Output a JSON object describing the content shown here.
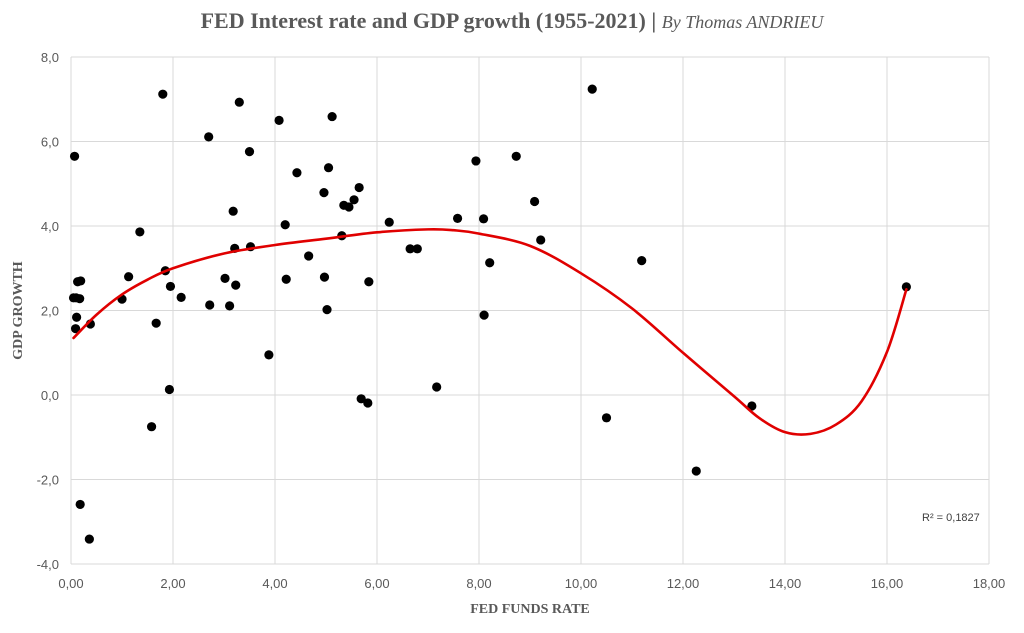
{
  "chart_data": {
    "type": "scatter",
    "title": "FED Interest rate and GDP growth (1955-2021)",
    "title_separator": "|",
    "subtitle": "By Thomas ANDRIEU",
    "xlabel": "FED FUNDS RATE",
    "ylabel": "GDP GROWTH",
    "xlim": [
      0,
      18
    ],
    "ylim": [
      -4,
      8
    ],
    "x_ticks": [
      "0,00",
      "2,00",
      "4,00",
      "6,00",
      "8,00",
      "10,00",
      "12,00",
      "14,00",
      "16,00",
      "18,00"
    ],
    "y_ticks": [
      "-4,0",
      "-2,0",
      "0,0",
      "2,0",
      "4,0",
      "6,0",
      "8,0"
    ],
    "grid": true,
    "r_squared_label": "R² = 0,1827",
    "colors": {
      "points": "#000000",
      "trendline": "#e00000",
      "grid": "#d9d9d9",
      "text": "#595959"
    },
    "series": [
      {
        "points": [
          [
            0.07,
            5.65
          ],
          [
            0.05,
            2.3
          ],
          [
            0.1,
            2.3
          ],
          [
            0.17,
            2.28
          ],
          [
            0.13,
            2.68
          ],
          [
            0.19,
            2.7
          ],
          [
            0.11,
            1.84
          ],
          [
            0.09,
            1.57
          ],
          [
            0.38,
            1.68
          ],
          [
            0.18,
            -2.59
          ],
          [
            0.36,
            -3.41
          ],
          [
            1.0,
            2.27
          ],
          [
            1.13,
            2.8
          ],
          [
            1.35,
            3.86
          ],
          [
            1.58,
            -0.75
          ],
          [
            1.67,
            1.7
          ],
          [
            1.8,
            7.12
          ],
          [
            1.85,
            2.94
          ],
          [
            1.95,
            2.57
          ],
          [
            1.93,
            0.13
          ],
          [
            2.16,
            2.31
          ],
          [
            2.7,
            6.11
          ],
          [
            2.72,
            2.13
          ],
          [
            3.02,
            2.76
          ],
          [
            3.11,
            2.11
          ],
          [
            3.18,
            4.35
          ],
          [
            3.21,
            3.47
          ],
          [
            3.23,
            2.6
          ],
          [
            3.3,
            6.93
          ],
          [
            3.5,
            5.76
          ],
          [
            3.52,
            3.51
          ],
          [
            3.88,
            0.95
          ],
          [
            4.08,
            6.5
          ],
          [
            4.2,
            4.03
          ],
          [
            4.22,
            2.74
          ],
          [
            4.43,
            5.26
          ],
          [
            4.66,
            3.29
          ],
          [
            4.96,
            4.79
          ],
          [
            4.97,
            2.79
          ],
          [
            5.02,
            2.02
          ],
          [
            5.05,
            5.38
          ],
          [
            5.12,
            6.59
          ],
          [
            5.31,
            3.77
          ],
          [
            5.35,
            4.49
          ],
          [
            5.45,
            4.45
          ],
          [
            5.55,
            4.62
          ],
          [
            5.65,
            4.91
          ],
          [
            5.69,
            -0.09
          ],
          [
            5.82,
            -0.19
          ],
          [
            5.84,
            2.68
          ],
          [
            6.24,
            4.09
          ],
          [
            6.65,
            3.46
          ],
          [
            6.79,
            3.46
          ],
          [
            7.17,
            0.19
          ],
          [
            7.58,
            4.18
          ],
          [
            7.94,
            5.54
          ],
          [
            8.09,
            4.17
          ],
          [
            8.1,
            1.89
          ],
          [
            8.21,
            3.13
          ],
          [
            8.73,
            5.65
          ],
          [
            9.09,
            4.58
          ],
          [
            9.21,
            3.67
          ],
          [
            10.22,
            7.24
          ],
          [
            10.5,
            -0.54
          ],
          [
            11.19,
            3.18
          ],
          [
            12.26,
            -1.8
          ],
          [
            13.35,
            -0.26
          ],
          [
            16.38,
            2.56
          ]
        ]
      }
    ],
    "trendline": {
      "type": "polynomial",
      "points": [
        [
          0.05,
          1.35
        ],
        [
          0.5,
          1.9
        ],
        [
          1.0,
          2.38
        ],
        [
          1.5,
          2.73
        ],
        [
          2.0,
          3.0
        ],
        [
          3.0,
          3.35
        ],
        [
          4.0,
          3.55
        ],
        [
          5.0,
          3.7
        ],
        [
          6.0,
          3.85
        ],
        [
          7.0,
          3.92
        ],
        [
          7.5,
          3.9
        ],
        [
          8.0,
          3.82
        ],
        [
          9.0,
          3.53
        ],
        [
          10.0,
          2.88
        ],
        [
          11.0,
          2.05
        ],
        [
          12.0,
          1.0
        ],
        [
          13.0,
          -0.03
        ],
        [
          13.5,
          -0.55
        ],
        [
          14.0,
          -0.88
        ],
        [
          14.5,
          -0.92
        ],
        [
          15.0,
          -0.7
        ],
        [
          15.5,
          -0.15
        ],
        [
          16.0,
          1.02
        ],
        [
          16.38,
          2.5
        ]
      ]
    }
  }
}
